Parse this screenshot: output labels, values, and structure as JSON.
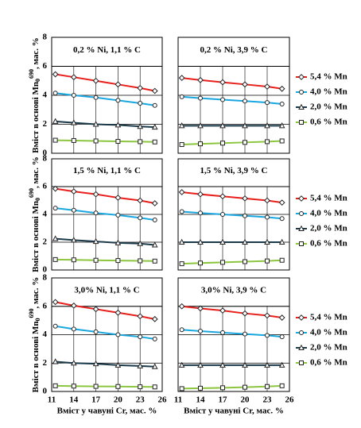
{
  "chart_data": [
    {
      "type": "line",
      "title": "0,2 % Ni,  1,1 % C",
      "ylabel": "Вміст в основі Mn",
      "ylabel_sub": "0",
      "ylabel_sup": "690",
      "ylabel_tail": ", мас. %",
      "x": [
        11.5,
        14,
        17,
        20,
        23,
        25
      ],
      "xlim": [
        11,
        26
      ],
      "xticks": [
        11,
        14,
        17,
        20,
        23,
        26
      ],
      "ylim": [
        0,
        8
      ],
      "yticks": [
        0,
        2,
        4,
        6,
        8
      ],
      "series": [
        {
          "name": "5,4 % Mn",
          "color": "#e8201c",
          "marker": "diamond",
          "values": [
            5.45,
            5.25,
            5.0,
            4.75,
            4.5,
            4.3
          ]
        },
        {
          "name": "4,0 % Mn",
          "color": "#1aa7e0",
          "marker": "circle",
          "values": [
            4.15,
            4.0,
            3.85,
            3.65,
            3.45,
            3.3
          ]
        },
        {
          "name": "2,0 % Mn",
          "color": "#1b3a4a",
          "marker": "triangle",
          "values": [
            2.2,
            2.1,
            2.0,
            1.95,
            1.85,
            1.8
          ]
        },
        {
          "name": "0,6 % Mn",
          "color": "#8cc63f",
          "marker": "square",
          "values": [
            0.9,
            0.88,
            0.85,
            0.82,
            0.8,
            0.78
          ]
        }
      ]
    },
    {
      "type": "line",
      "title": "0,2 % Ni,  3,9 % C",
      "x": [
        11.5,
        14,
        17,
        20,
        23,
        25
      ],
      "xlim": [
        11,
        26
      ],
      "xticks": [
        11,
        14,
        17,
        20,
        23,
        26
      ],
      "ylim": [
        0,
        8
      ],
      "yticks": [
        0,
        2,
        4,
        6,
        8
      ],
      "series": [
        {
          "name": "5,4 % Mn",
          "color": "#e8201c",
          "marker": "diamond",
          "values": [
            5.2,
            5.05,
            4.9,
            4.75,
            4.6,
            4.45
          ]
        },
        {
          "name": "4,0 % Mn",
          "color": "#1aa7e0",
          "marker": "circle",
          "values": [
            3.9,
            3.8,
            3.7,
            3.6,
            3.5,
            3.4
          ]
        },
        {
          "name": "2,0 % Mn",
          "color": "#1b3a4a",
          "marker": "triangle",
          "values": [
            1.9,
            1.9,
            1.9,
            1.9,
            1.9,
            1.9
          ]
        },
        {
          "name": "0,6 % Mn",
          "color": "#8cc63f",
          "marker": "square",
          "values": [
            0.6,
            0.65,
            0.7,
            0.75,
            0.8,
            0.85
          ]
        }
      ]
    },
    {
      "type": "line",
      "title": "1,5 % Ni,  1,1 % C",
      "ylabel": "Вміст в основі Mn",
      "ylabel_sub": "0",
      "ylabel_sup": "690",
      "ylabel_tail": ", мас. %",
      "x": [
        11.5,
        14,
        17,
        20,
        23,
        25
      ],
      "xlim": [
        11,
        26
      ],
      "xticks": [
        11,
        14,
        17,
        20,
        23,
        26
      ],
      "ylim": [
        0,
        8
      ],
      "yticks": [
        0,
        2,
        4,
        6,
        8
      ],
      "series": [
        {
          "name": "5,4 % Mn",
          "color": "#e8201c",
          "marker": "diamond",
          "values": [
            5.85,
            5.65,
            5.45,
            5.2,
            5.0,
            4.8
          ]
        },
        {
          "name": "4,0 % Mn",
          "color": "#1aa7e0",
          "marker": "circle",
          "values": [
            4.45,
            4.3,
            4.1,
            3.95,
            3.75,
            3.6
          ]
        },
        {
          "name": "2,0 % Mn",
          "color": "#1b3a4a",
          "marker": "triangle",
          "values": [
            2.25,
            2.15,
            2.05,
            1.95,
            1.9,
            1.8
          ]
        },
        {
          "name": "0,6 % Mn",
          "color": "#8cc63f",
          "marker": "square",
          "values": [
            0.75,
            0.73,
            0.7,
            0.68,
            0.66,
            0.64
          ]
        }
      ]
    },
    {
      "type": "line",
      "title": "1,5 % Ni,  3,9 % C",
      "x": [
        11.5,
        14,
        17,
        20,
        23,
        25
      ],
      "xlim": [
        11,
        26
      ],
      "xticks": [
        11,
        14,
        17,
        20,
        23,
        26
      ],
      "ylim": [
        0,
        8
      ],
      "yticks": [
        0,
        2,
        4,
        6,
        8
      ],
      "series": [
        {
          "name": "5,4 % Mn",
          "color": "#e8201c",
          "marker": "diamond",
          "values": [
            5.6,
            5.45,
            5.3,
            5.15,
            5.0,
            4.85
          ]
        },
        {
          "name": "4,0 % Mn",
          "color": "#1aa7e0",
          "marker": "circle",
          "values": [
            4.2,
            4.1,
            4.0,
            3.9,
            3.8,
            3.7
          ]
        },
        {
          "name": "2,0 % Mn",
          "color": "#1b3a4a",
          "marker": "triangle",
          "values": [
            2.0,
            2.0,
            2.0,
            2.0,
            2.0,
            2.0
          ]
        },
        {
          "name": "0,6 % Mn",
          "color": "#8cc63f",
          "marker": "square",
          "values": [
            0.45,
            0.5,
            0.55,
            0.6,
            0.65,
            0.7
          ]
        }
      ]
    },
    {
      "type": "line",
      "title": "3,0% Ni,  1,1 % C",
      "ylabel": "Вміст в основі Mn",
      "ylabel_sub": "0",
      "ylabel_sup": "690",
      "ylabel_tail": ", мас. %",
      "xlabel": "Вміст у чавуні Cr, мас. %",
      "x": [
        11.5,
        14,
        17,
        20,
        23,
        25
      ],
      "xlim": [
        11,
        26
      ],
      "xticks": [
        11,
        14,
        17,
        20,
        23,
        26
      ],
      "ylim": [
        0,
        8
      ],
      "yticks": [
        0,
        2,
        4,
        6,
        8
      ],
      "series": [
        {
          "name": "5,4 % Mn",
          "color": "#e8201c",
          "marker": "diamond",
          "values": [
            6.3,
            6.05,
            5.8,
            5.55,
            5.3,
            5.1
          ]
        },
        {
          "name": "4,0 % Mn",
          "color": "#1aa7e0",
          "marker": "circle",
          "values": [
            4.6,
            4.4,
            4.2,
            4.0,
            3.85,
            3.7
          ]
        },
        {
          "name": "2,0 % Mn",
          "color": "#1b3a4a",
          "marker": "triangle",
          "values": [
            2.1,
            2.0,
            1.95,
            1.85,
            1.8,
            1.75
          ]
        },
        {
          "name": "0,6 % Mn",
          "color": "#8cc63f",
          "marker": "square",
          "values": [
            0.4,
            0.38,
            0.36,
            0.35,
            0.33,
            0.32
          ]
        }
      ]
    },
    {
      "type": "line",
      "title": "3,0% Ni,  3,9 % C",
      "xlabel": "Вміст у чавуні Cr, мас. %",
      "x": [
        11.5,
        14,
        17,
        20,
        23,
        25
      ],
      "xlim": [
        11,
        26
      ],
      "xticks": [
        11,
        14,
        17,
        20,
        23,
        26
      ],
      "ylim": [
        0,
        8
      ],
      "yticks": [
        0,
        2,
        4,
        6,
        8
      ],
      "series": [
        {
          "name": "5,4 % Mn",
          "color": "#e8201c",
          "marker": "diamond",
          "values": [
            6.0,
            5.85,
            5.7,
            5.5,
            5.35,
            5.2
          ]
        },
        {
          "name": "4,0 % Mn",
          "color": "#1aa7e0",
          "marker": "circle",
          "values": [
            4.35,
            4.25,
            4.15,
            4.05,
            3.95,
            3.85
          ]
        },
        {
          "name": "2,0 % Mn",
          "color": "#1b3a4a",
          "marker": "triangle",
          "values": [
            1.85,
            1.85,
            1.85,
            1.85,
            1.85,
            1.85
          ]
        },
        {
          "name": "0,6 % Mn",
          "color": "#8cc63f",
          "marker": "square",
          "values": [
            0.2,
            0.23,
            0.26,
            0.3,
            0.35,
            0.4
          ]
        }
      ]
    }
  ]
}
